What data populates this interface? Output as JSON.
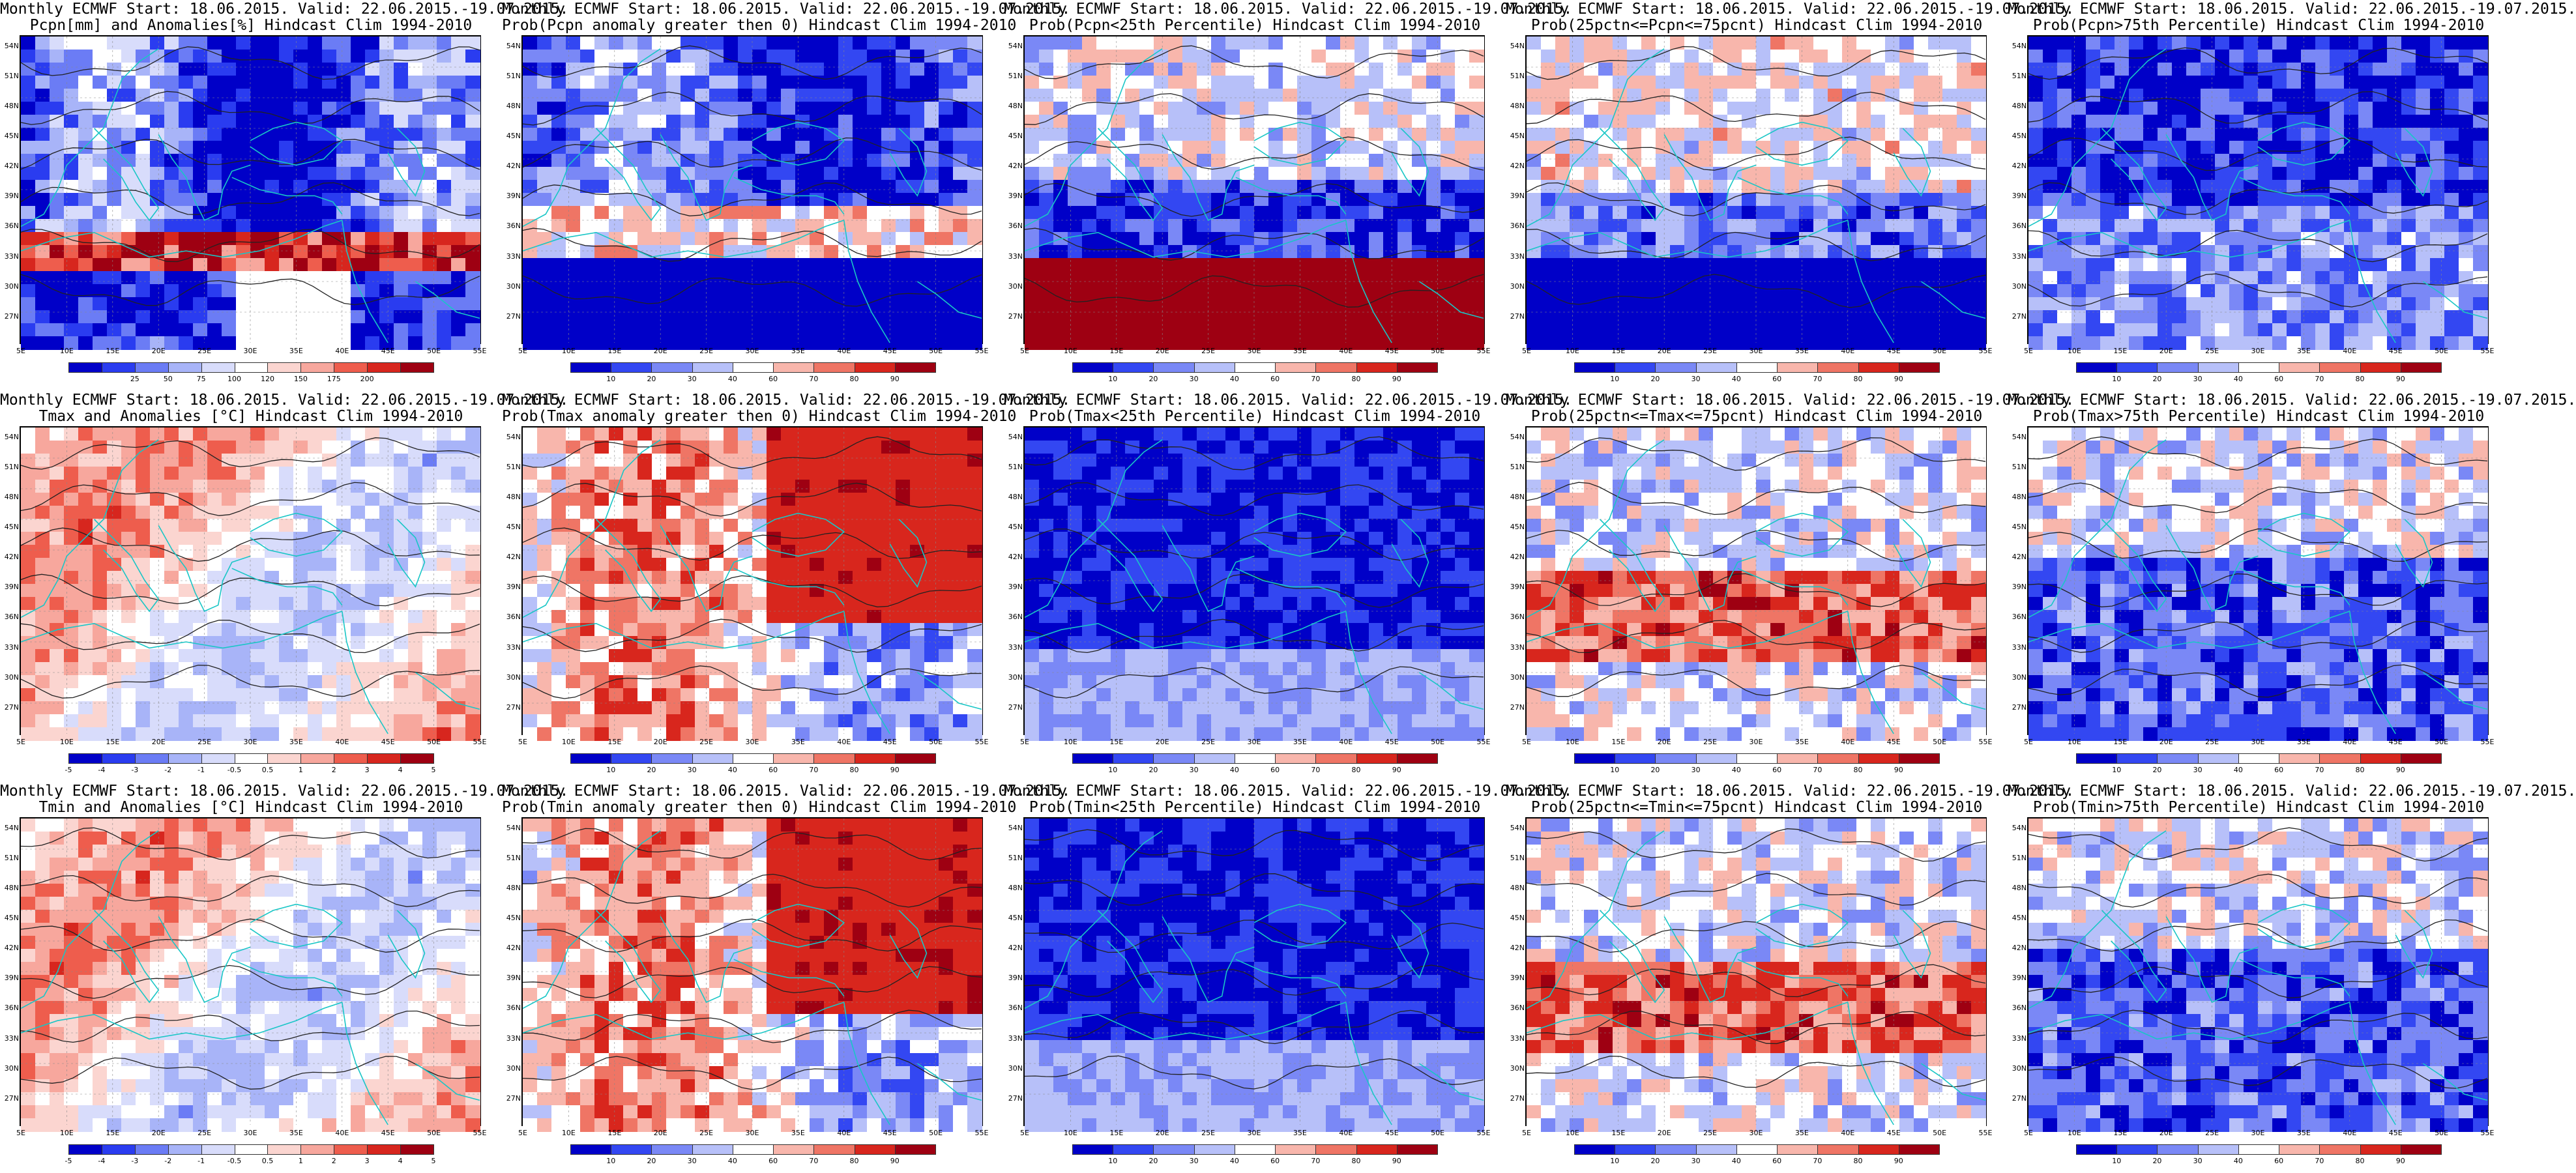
{
  "figure": {
    "lat_labels": [
      "54N",
      "51N",
      "48N",
      "45N",
      "42N",
      "39N",
      "36N",
      "33N",
      "30N",
      "27N"
    ],
    "lon_labels": [
      "5E",
      "10E",
      "15E",
      "20E",
      "25E",
      "30E",
      "35E",
      "40E",
      "45E",
      "50E",
      "55E"
    ]
  },
  "colorbars": {
    "precip": {
      "ticks": [
        "25",
        "50",
        "75",
        "100",
        "120",
        "150",
        "175",
        "200"
      ],
      "colors": [
        "#0000c8",
        "#2a3cf0",
        "#6b7cf5",
        "#a8b4f8",
        "#d8dcfb",
        "#ffffff",
        "#fbd5d0",
        "#f7a79d",
        "#ee5d4d",
        "#d7261e",
        "#9e0012"
      ]
    },
    "anom": {
      "ticks": [
        "-5",
        "-4",
        "-3",
        "-2",
        "-1",
        "-0.5",
        "0.5",
        "1",
        "2",
        "3",
        "4",
        "5"
      ],
      "colors": [
        "#0000c8",
        "#2a3cf0",
        "#6b7cf5",
        "#a8b4f8",
        "#d8dcfb",
        "#ffffff",
        "#fbd5d0",
        "#f7a79d",
        "#ee5d4d",
        "#d7261e",
        "#9e0012"
      ]
    },
    "prob": {
      "ticks": [
        "10",
        "20",
        "30",
        "40",
        "60",
        "70",
        "80",
        "90"
      ],
      "colors": [
        "#0000c8",
        "#3347f2",
        "#7a88f6",
        "#b7c0f9",
        "#ffffff",
        "#f8b6ac",
        "#ef7565",
        "#d8261d",
        "#9e0012"
      ]
    }
  },
  "panels": [
    {
      "id": "r1c1",
      "line1": "Monthly ECMWF Start: 18.06.2015. Valid: 22.06.2015.-19.07.2015.",
      "line2": "Pcpn[mm] and Anomalies[%] Hindcast Clim 1994-2010",
      "cbar": "precip",
      "field": "precip"
    },
    {
      "id": "r1c2",
      "line1": "Monthly ECMWF Start: 18.06.2015. Valid: 22.06.2015.-19.07.2015.",
      "line2": "Prob(Pcpn anomaly greater then 0) Hindcast Clim 1994-2010",
      "cbar": "prob",
      "field": "pgt0"
    },
    {
      "id": "r1c3",
      "line1": "Monthly ECMWF Start: 18.06.2015. Valid: 22.06.2015.-19.07.2015.",
      "line2": "Prob(Pcpn<25th Percentile) Hindcast Clim 1994-2010",
      "cbar": "prob",
      "field": "plow"
    },
    {
      "id": "r1c4",
      "line1": "Monthly ECMWF Start: 18.06.2015. Valid: 22.06.2015.-19.07.2015.",
      "line2": "Prob(25pctn<=Pcpn<=75pcnt) Hindcast Clim 1994-2010",
      "cbar": "prob",
      "field": "pmid"
    },
    {
      "id": "r1c5",
      "line1": "Monthly ECMWF Start: 18.06.2015. Valid: 22.06.2015.-19.07.2015.",
      "line2": "Prob(Pcpn>75th Percentile) Hindcast Clim 1994-2010",
      "cbar": "prob",
      "field": "phigh"
    },
    {
      "id": "r2c1",
      "line1": "Monthly ECMWF Start: 18.06.2015. Valid: 22.06.2015.-19.07.2015.",
      "line2": "Tmax and Anomalies [°C] Hindcast Clim 1994-2010",
      "cbar": "anom",
      "field": "tanom"
    },
    {
      "id": "r2c2",
      "line1": "Monthly ECMWF Start: 18.06.2015. Valid: 22.06.2015.-19.07.2015.",
      "line2": "Prob(Tmax anomaly greater then 0) Hindcast Clim 1994-2010",
      "cbar": "prob",
      "field": "tgt0"
    },
    {
      "id": "r2c3",
      "line1": "Monthly ECMWF Start: 18.06.2015. Valid: 22.06.2015.-19.07.2015.",
      "line2": "Prob(Tmax<25th Percentile) Hindcast Clim 1994-2010",
      "cbar": "prob",
      "field": "tlow"
    },
    {
      "id": "r2c4",
      "line1": "Monthly ECMWF Start: 18.06.2015. Valid: 22.06.2015.-19.07.2015.",
      "line2": "Prob(25pctn<=Tmax<=75pcnt) Hindcast Clim 1994-2010",
      "cbar": "prob",
      "field": "tmid"
    },
    {
      "id": "r2c5",
      "line1": "Monthly ECMWF Start: 18.06.2015. Valid: 22.06.2015.-19.07.2015.",
      "line2": "Prob(Tmax>75th Percentile) Hindcast Clim 1994-2010",
      "cbar": "prob",
      "field": "thigh"
    },
    {
      "id": "r3c1",
      "line1": "Monthly ECMWF Start: 18.06.2015. Valid: 22.06.2015.-19.07.2015.",
      "line2": "Tmin and Anomalies [°C] Hindcast Clim 1994-2010",
      "cbar": "anom",
      "field": "tanom2"
    },
    {
      "id": "r3c2",
      "line1": "Monthly ECMWF Start: 18.06.2015. Valid: 22.06.2015.-19.07.2015.",
      "line2": "Prob(Tmin anomaly greater then 0) Hindcast Clim 1994-2010",
      "cbar": "prob",
      "field": "ngt0"
    },
    {
      "id": "r3c3",
      "line1": "Monthly ECMWF Start: 18.06.2015. Valid: 22.06.2015.-19.07.2015.",
      "line2": "Prob(Tmin<25th Percentile) Hindcast Clim 1994-2010",
      "cbar": "prob",
      "field": "nlow"
    },
    {
      "id": "r3c4",
      "line1": "Monthly ECMWF Start: 18.06.2015. Valid: 22.06.2015.-19.07.2015.",
      "line2": "Prob(25pctn<=Tmin<=75pcnt) Hindcast Clim 1994-2010",
      "cbar": "prob",
      "field": "nmid"
    },
    {
      "id": "r3c5",
      "line1": "Monthly ECMWF Start: 18.06.2015. Valid: 22.06.2015.-19.07.2015.",
      "line2": "Prob(Tmin>75th Percentile) Hindcast Clim 1994-2010",
      "cbar": "prob",
      "field": "nhigh"
    }
  ]
}
